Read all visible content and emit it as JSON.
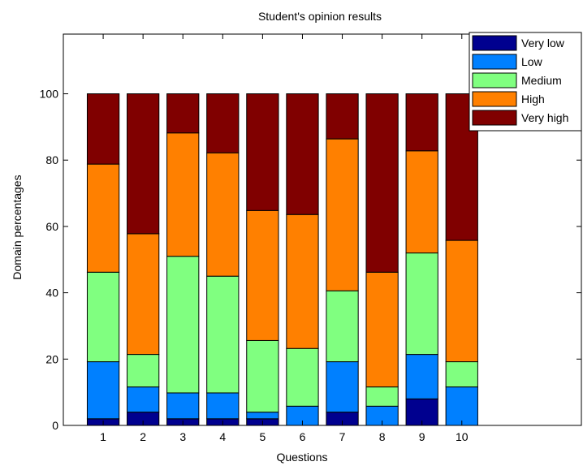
{
  "chart_data": {
    "type": "bar",
    "stacked": true,
    "title": "Student's opinion results",
    "xlabel": "Questions",
    "ylabel": "Domain percentages",
    "categories": [
      "1",
      "2",
      "3",
      "4",
      "5",
      "6",
      "7",
      "8",
      "9",
      "10"
    ],
    "xlim": [
      0,
      13
    ],
    "ylim": [
      0,
      118
    ],
    "yticks": [
      0,
      20,
      40,
      60,
      80,
      100
    ],
    "grid": false,
    "legend_position": "top-right",
    "series": [
      {
        "name": "Very low",
        "color": "#00008f",
        "values": [
          2,
          4,
          2,
          2,
          2,
          0,
          4,
          0,
          8,
          0
        ]
      },
      {
        "name": "Low",
        "color": "#0080ff",
        "values": [
          17.2,
          7.6,
          7.8,
          7.8,
          2,
          5.8,
          15.2,
          5.8,
          13.4,
          11.6
        ]
      },
      {
        "name": "Medium",
        "color": "#80ff80",
        "values": [
          27,
          9.8,
          41.2,
          35.2,
          21.6,
          17.4,
          21.4,
          5.8,
          30.6,
          7.6
        ]
      },
      {
        "name": "High",
        "color": "#ff8000",
        "values": [
          32.6,
          36.4,
          37.2,
          37.2,
          39.2,
          40.4,
          45.8,
          34.6,
          30.8,
          36.6
        ]
      },
      {
        "name": "Very high",
        "color": "#800000",
        "values": [
          21.2,
          42.2,
          11.8,
          17.8,
          35.2,
          36.4,
          13.6,
          53.8,
          17.2,
          44.2
        ]
      }
    ]
  }
}
